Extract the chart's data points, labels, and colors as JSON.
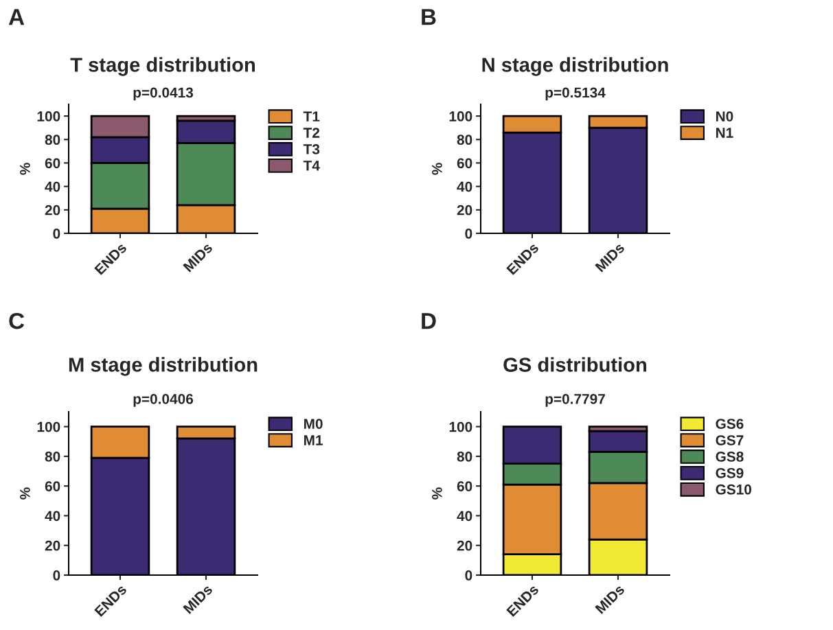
{
  "chart_data": [
    {
      "type": "bar",
      "title": "T stage distribution",
      "subtitle": "p=0.0413",
      "ylabel": "%",
      "annotations": [
        "A"
      ],
      "categories": [
        "ENDs",
        "MIDs"
      ],
      "stacked": true,
      "ylim": [
        0,
        110
      ],
      "yticks": [
        0,
        20,
        40,
        60,
        80,
        100
      ],
      "grid": false,
      "legend": "right",
      "series": [
        {
          "name": "T1",
          "color": "#e08c35",
          "values": [
            21,
            24
          ]
        },
        {
          "name": "T2",
          "color": "#4e8a57",
          "values": [
            39,
            53
          ]
        },
        {
          "name": "T3",
          "color": "#3c2a72",
          "values": [
            22,
            19
          ]
        },
        {
          "name": "T4",
          "color": "#8c5a6e",
          "values": [
            18,
            4
          ]
        }
      ]
    },
    {
      "type": "bar",
      "title": "N stage distribution",
      "subtitle": "p=0.5134",
      "ylabel": "%",
      "annotations": [
        "B"
      ],
      "categories": [
        "ENDs",
        "MIDs"
      ],
      "stacked": true,
      "ylim": [
        0,
        110
      ],
      "yticks": [
        0,
        20,
        40,
        60,
        80,
        100
      ],
      "grid": false,
      "legend": "right",
      "series": [
        {
          "name": "N0",
          "color": "#3c2a72",
          "values": [
            86,
            90
          ]
        },
        {
          "name": "N1",
          "color": "#e08c35",
          "values": [
            14,
            10
          ]
        }
      ]
    },
    {
      "type": "bar",
      "title": "M stage distribution",
      "subtitle": "p=0.0406",
      "ylabel": "%",
      "annotations": [
        "C"
      ],
      "categories": [
        "ENDs",
        "MIDs"
      ],
      "stacked": true,
      "ylim": [
        0,
        110
      ],
      "yticks": [
        0,
        20,
        40,
        60,
        80,
        100
      ],
      "grid": false,
      "legend": "right",
      "series": [
        {
          "name": "M0",
          "color": "#3c2a72",
          "values": [
            79,
            92
          ]
        },
        {
          "name": "M1",
          "color": "#e08c35",
          "values": [
            21,
            8
          ]
        }
      ]
    },
    {
      "type": "bar",
      "title": "GS distribution",
      "subtitle": "p=0.7797",
      "ylabel": "%",
      "annotations": [
        "D"
      ],
      "categories": [
        "ENDs",
        "MIDs"
      ],
      "stacked": true,
      "ylim": [
        0,
        110
      ],
      "yticks": [
        0,
        20,
        40,
        60,
        80,
        100
      ],
      "grid": false,
      "legend": "right",
      "series": [
        {
          "name": "GS6",
          "color": "#f2e935",
          "values": [
            14,
            24
          ]
        },
        {
          "name": "GS7",
          "color": "#e08c35",
          "values": [
            47,
            38
          ]
        },
        {
          "name": "GS8",
          "color": "#4e8a57",
          "values": [
            14,
            21
          ]
        },
        {
          "name": "GS9",
          "color": "#3c2a72",
          "values": [
            25,
            14
          ]
        },
        {
          "name": "GS10",
          "color": "#8c5a6e",
          "values": [
            null,
            3
          ]
        }
      ]
    }
  ]
}
